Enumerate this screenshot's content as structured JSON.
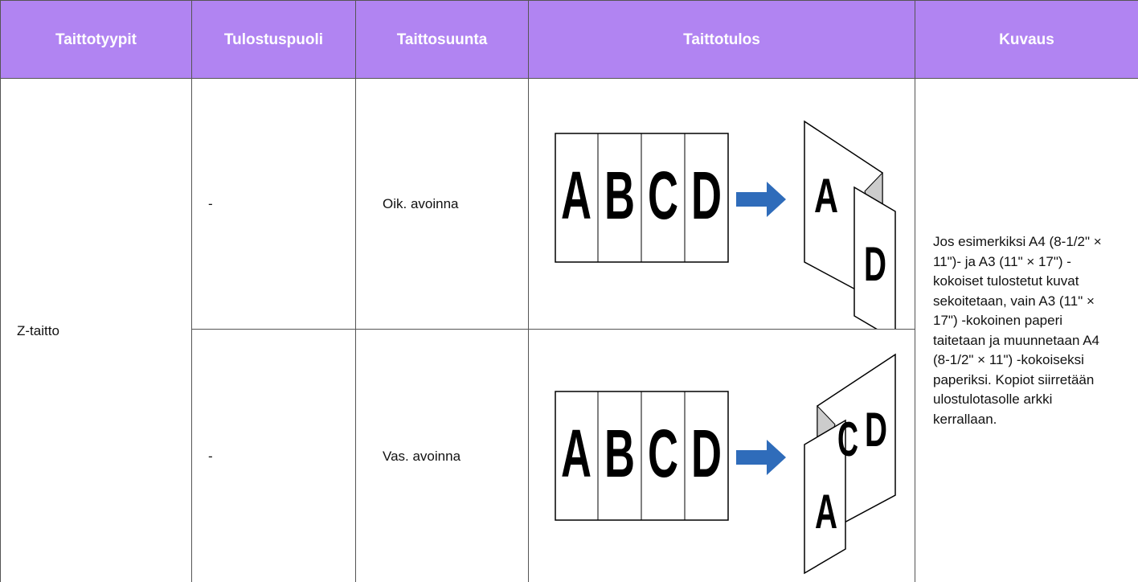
{
  "header": {
    "columns": [
      "Taittotyypit",
      "Tulostuspuoli",
      "Taittosuunta",
      "Taittotulos",
      "Kuvaus"
    ]
  },
  "table": {
    "fold_type": "Z-taitto",
    "rows": [
      {
        "output_tray": "-",
        "direction": "Oik. avoinna"
      },
      {
        "output_tray": "-",
        "direction": "Vas. avoinna"
      }
    ],
    "description": "Jos esimerkiksi A4 (8-1/2\" × 11\")- ja A3 (11\" × 17\") -kokoiset tulostetut kuvat sekoitetaan, vain A3 (11\" × 17\") -kokoinen paperi taitetaan ja muunnetaan A4 (8-1/2\" × 11\") -kokoiseksi paperiksi. Kopiot siirretään ulostulotasolle arkki kerrallaan."
  },
  "illustration": {
    "letters": [
      "A",
      "B",
      "C",
      "D"
    ]
  }
}
